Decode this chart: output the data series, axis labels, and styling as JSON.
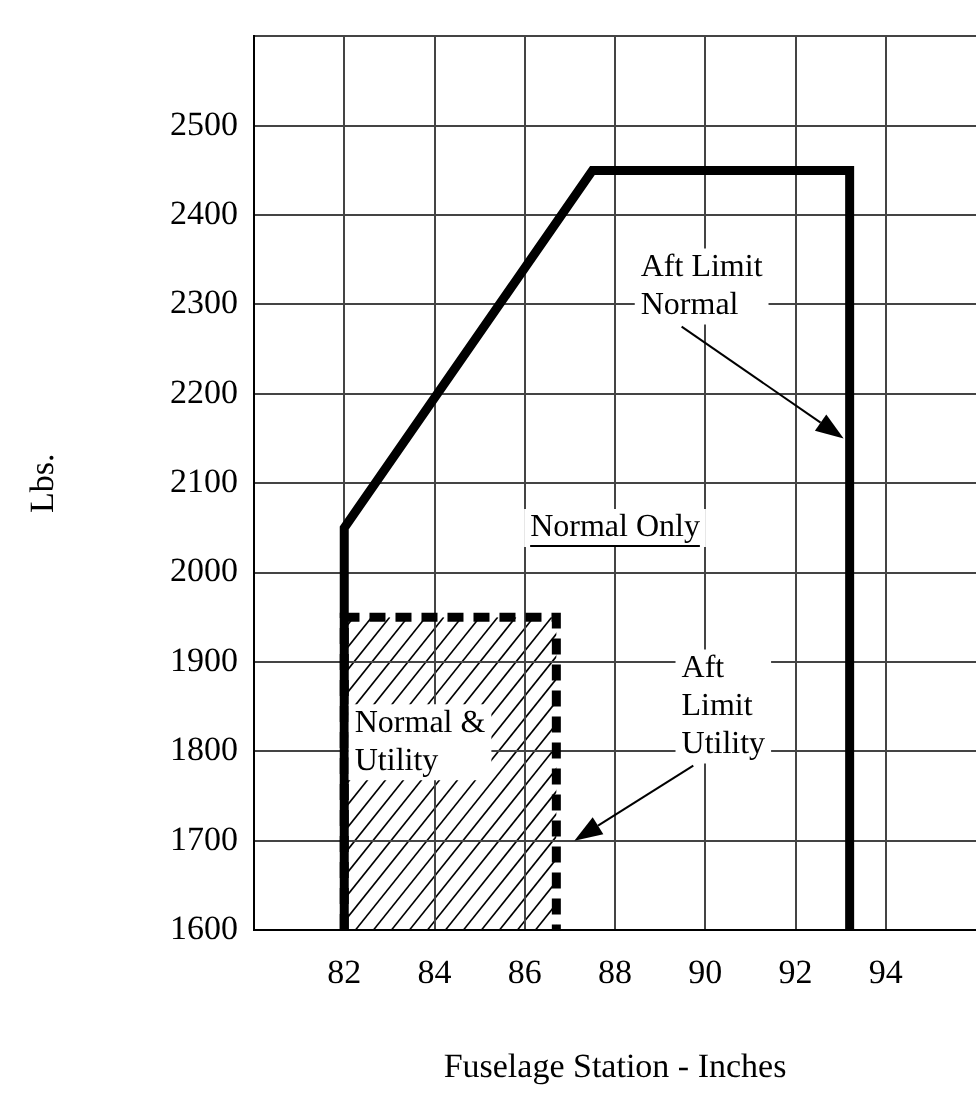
{
  "chart_data": {
    "type": "line",
    "xlabel": "Fuselage Station - Inches",
    "ylabel": "Lbs.",
    "xlim": [
      80,
      96
    ],
    "xticks": [
      82,
      84,
      86,
      88,
      90,
      92,
      94
    ],
    "ylim": [
      1600,
      2600
    ],
    "yticks": [
      1600,
      1700,
      1800,
      1900,
      2000,
      2100,
      2200,
      2300,
      2400,
      2500,
      {
        "value": 2600,
        "label": null
      }
    ],
    "grid": true,
    "legend": false,
    "marker": "none",
    "series": [
      {
        "color": "#000000",
        "line_style": "solid",
        "x": [
          82,
          82,
          87.5,
          93.2,
          93.2
        ],
        "values": [
          1600,
          2050,
          2450,
          2450,
          1600
        ]
      },
      {
        "color": "#000000",
        "line_style": "dashed",
        "x": [
          82,
          82,
          86.7,
          86.7
        ],
        "values": [
          1600,
          1950,
          1950,
          1600
        ]
      }
    ],
    "annotations": [
      "Aft Limit\nNormal",
      "Normal Only",
      "Aft\nLimit\nUtility",
      "Normal &\nUtility"
    ]
  }
}
